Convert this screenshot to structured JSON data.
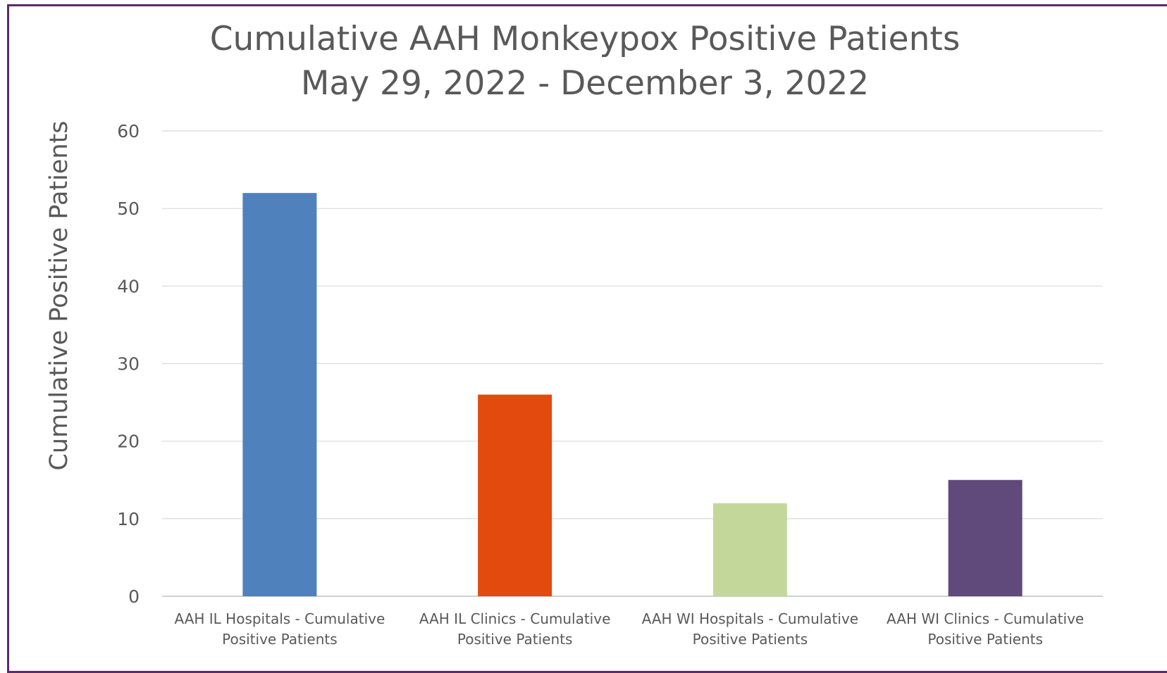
{
  "chart_data": {
    "type": "bar",
    "title": "Cumulative AAH Monkeypox Positive Patients",
    "subtitle": "May 29, 2022 - December 3, 2022",
    "xlabel": "",
    "ylabel": "Cumulative Positive Patients",
    "categories": [
      [
        "AAH IL Hospitals - Cumulative",
        "Positive Patients"
      ],
      [
        "AAH IL Clinics - Cumulative",
        "Positive Patients"
      ],
      [
        "AAH WI Hospitals - Cumulative",
        "Positive Patients"
      ],
      [
        "AAH WI Clinics - Cumulative",
        "Positive Patients"
      ]
    ],
    "values": [
      52,
      26,
      12,
      15
    ],
    "colors": [
      "#4f81bd",
      "#e34a0e",
      "#c4d79b",
      "#604a7b"
    ],
    "ylim": [
      0,
      60
    ],
    "yticks": [
      "0",
      "10",
      "20",
      "30",
      "40",
      "50",
      "60"
    ],
    "grid": true,
    "legend": "none"
  }
}
